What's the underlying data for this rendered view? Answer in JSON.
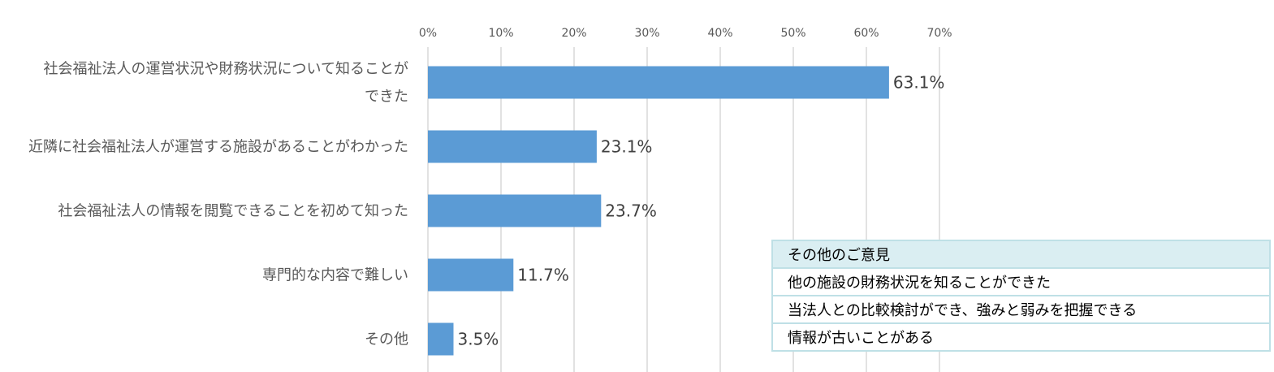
{
  "chart_data": {
    "type": "bar",
    "orientation": "horizontal",
    "categories": [
      [
        "社会福祉法人の運営状況や財務状況について知ることが",
        "できた"
      ],
      [
        "近隣に社会福祉法人が運営する施設があることがわかった"
      ],
      [
        "社会福祉法人の情報を閲覧できることを初めて知った"
      ],
      [
        "専門的な内容で難しい"
      ],
      [
        "その他"
      ]
    ],
    "values": [
      63.1,
      23.1,
      23.7,
      11.7,
      3.5
    ],
    "data_labels": [
      "63.1%",
      "23.1%",
      "23.7%",
      "11.7%",
      "3.5%"
    ],
    "xlim": [
      0,
      70
    ],
    "xticks": [
      0,
      10,
      20,
      30,
      40,
      50,
      60,
      70
    ],
    "xtick_labels": [
      "0%",
      "10%",
      "20%",
      "30%",
      "40%",
      "50%",
      "60%",
      "70%"
    ],
    "x_axis_position": "top",
    "grid": true,
    "colors": {
      "bar": "#5b9bd5",
      "grid": "#d9d9d9"
    }
  },
  "opinions": {
    "header": "その他のご意見",
    "items": [
      "他の施設の財務状況を知ることができた",
      "当法人との比較検討ができ、強みと弱みを把握できる",
      "情報が古いことがある"
    ]
  }
}
